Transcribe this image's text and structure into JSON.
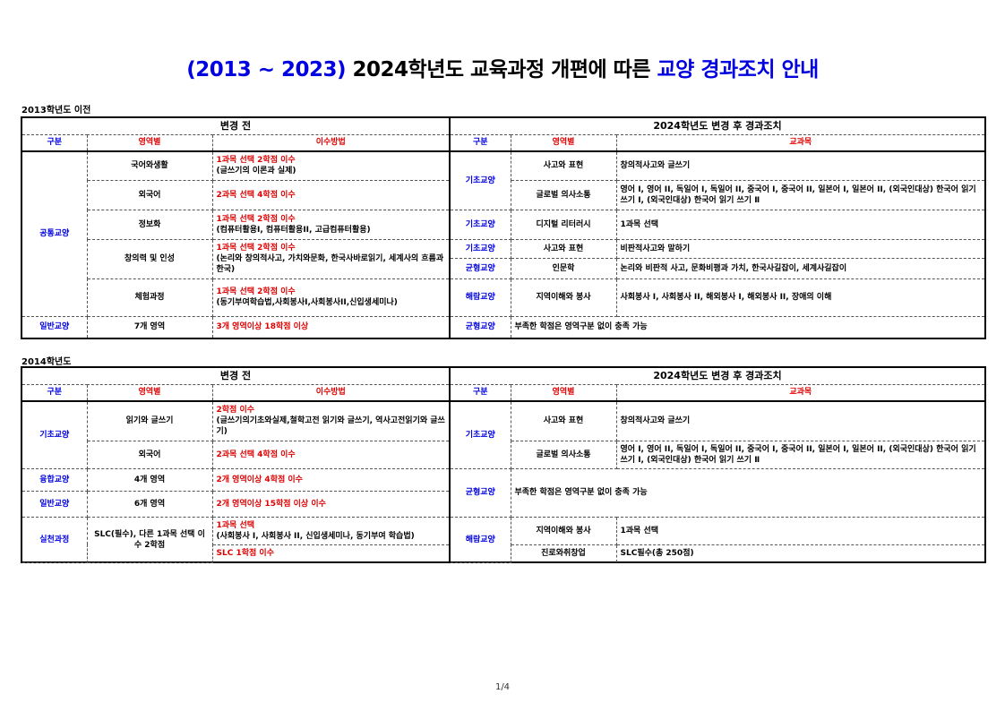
{
  "title": {
    "part1": "(2013 ~ 2023)",
    "part2": " 2024학년도 교육과정 개편에 따른 ",
    "part3": "교양 경과조치 안내"
  },
  "headers": {
    "before": "변경 전",
    "after": "2024학년도 변경 후 경과조치",
    "col_gubun": "구분",
    "col_area": "영역별",
    "col_method": "이수방법",
    "col_course": "교과목"
  },
  "s1": {
    "label": "2013학년도 이전",
    "left": {
      "gongtong": "공통교양",
      "rows": [
        {
          "area": "국어와생활",
          "req": "1과목 선택 2학점 이수",
          "detail": "(글쓰기의 이론과 실제)"
        },
        {
          "area": "외국어",
          "req": "2과목 선택 4학점 이수",
          "detail": ""
        },
        {
          "area": "정보화",
          "req": "1과목 선택 2학점 이수",
          "detail": "(컴퓨터활용I, 컴퓨터활용II, 고급컴퓨터활용)"
        },
        {
          "area": "창의력 및 인성",
          "req": "1과목 선택 2학점 이수",
          "detail": "(논리와 창의적사고, 가치와문화, 한국사바로읽기, 세계사의 흐름과 한국)"
        },
        {
          "area": "체험과정",
          "req": "1과목 선택 2학점 이수",
          "detail": "(동기부여학습법,사회봉사I,사회봉사II,신입생세미나)"
        }
      ],
      "general": {
        "gubun": "일반교양",
        "area": "7개 영역",
        "req": "3개 영역이상 18학점 이상"
      }
    },
    "right": [
      {
        "gubun": "기초교양",
        "area": "사고와 표현",
        "course": "창의적사고와 글쓰기"
      },
      {
        "area": "글로벌 의사소통",
        "course": "영어 I, 영어 II, 독일어 I, 독일어 II, 중국어 I, 중국어 II, 일본어 I, 일본어 II, (외국인대상) 한국어 읽기 쓰기 Ⅰ, (외국인대상) 한국어 읽기 쓰기 Ⅱ"
      },
      {
        "gubun": "기초교양",
        "area": "디지털 리터러시",
        "course": "1과목 선택"
      },
      {
        "gubun": "기초교양",
        "area": "사고와 표현",
        "course": "비판적사고와 말하기"
      },
      {
        "gubun": "균형교양",
        "area": "인문학",
        "course": "논리와 비판적 사고, 문화비평과 가치, 한국사길잡이, 세계사길잡이"
      },
      {
        "gubun": "해람교양",
        "area": "지역이해와 봉사",
        "course": "사회봉사 I, 사회봉사 II, 해외봉사 I, 해외봉사 II, 장애의 이해"
      },
      {
        "gubun": "균형교양",
        "course": "부족한 학점은 영역구분 없이 충족 가능"
      }
    ]
  },
  "s2": {
    "label": "2014학년도",
    "left": [
      {
        "gubun": "기초교양",
        "area": "읽기와 글쓰기",
        "req": "2학점 이수",
        "detail": "(글쓰기의기초와실제,철학고전 읽기와 글쓰기, 역사고전읽기와 글쓰기)"
      },
      {
        "area": "외국어",
        "req": "2과목 선택 4학점 이수"
      },
      {
        "gubun": "융합교양",
        "area": "4개 영역",
        "req": "2개 영역이상 4학점 이수"
      },
      {
        "gubun": "일반교양",
        "area": "6개 영역",
        "req": "2개 영역이상 15학점 이상 이수"
      },
      {
        "gubun": "실천과정",
        "area": "SLC(필수), 다른 1과목 선택 이수 2학점",
        "req": "1과목 선택",
        "detail": "(사회봉사 I, 사회봉사 II, 신입생세미나, 동기부여 학습법)"
      },
      {
        "req": "SLC 1학점 이수"
      }
    ],
    "right": [
      {
        "gubun": "기초교양",
        "area": "사고와 표현",
        "course": "창의적사고와 글쓰기"
      },
      {
        "area": "글로벌 의사소통",
        "course": "영어 I, 영어 II, 독일어 I, 독일어 II, 중국어 I, 중국어 II, 일본어 I, 일본어 II, (외국인대상) 한국어 읽기 쓰기 Ⅰ, (외국인대상) 한국어 읽기 쓰기 Ⅱ"
      },
      {
        "gubun": "균형교양",
        "course": "부족한 학점은 영역구분 없이 충족 가능"
      },
      {
        "gubun": "해람교양",
        "area": "지역이해와 봉사",
        "course": "1과목 선택"
      },
      {
        "area": "진로와취창업",
        "course": "SLC필수(총 250점)"
      }
    ]
  },
  "page": "1/4",
  "colors": {
    "blue": "#0000e0",
    "red": "#e00000"
  }
}
